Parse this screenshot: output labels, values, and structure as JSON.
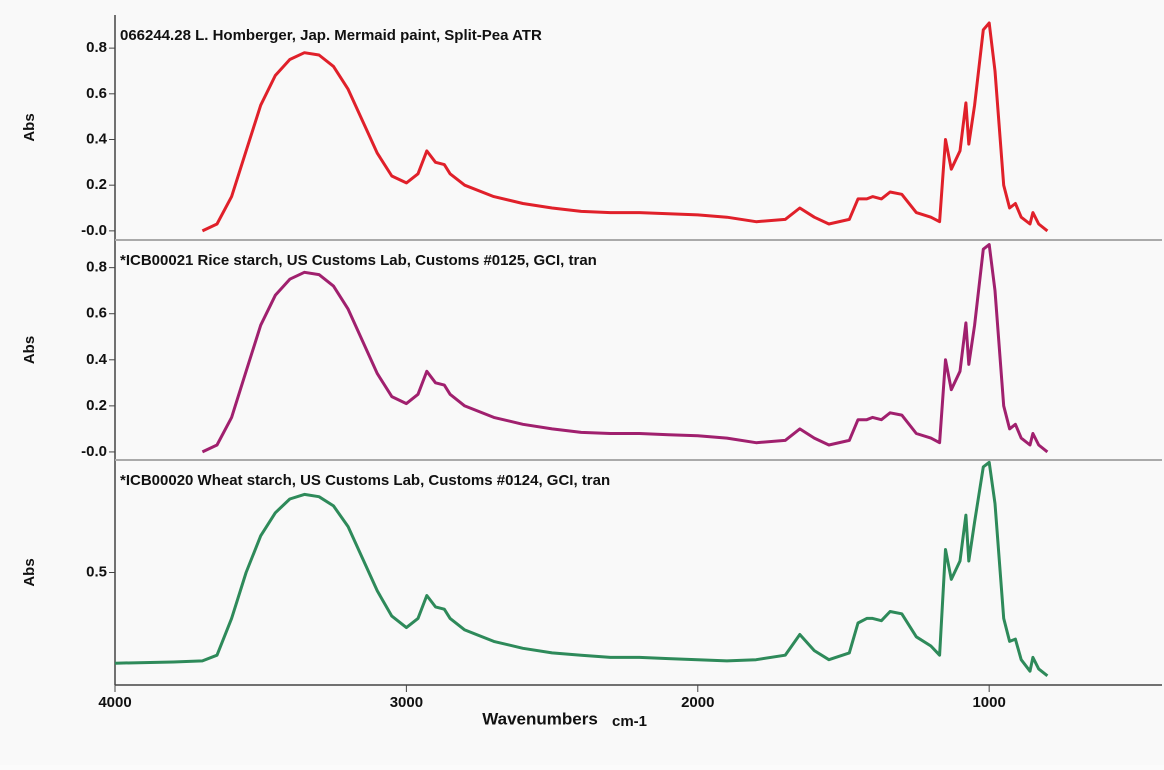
{
  "chart_data": [
    {
      "type": "line",
      "title": "066244.28 L. Homberger, Jap. Mermaid paint, Split-Pea ATR",
      "ylabel": "Abs",
      "color": "#e0202a",
      "xlim": [
        4000,
        400
      ],
      "ylim": [
        -0.04,
        0.945
      ],
      "yticks": [
        {
          "value": 0,
          "label": "-0.0"
        },
        0.2,
        0.4,
        0.6,
        0.8
      ],
      "x": [
        3700,
        3650,
        3600,
        3550,
        3500,
        3450,
        3400,
        3350,
        3300,
        3250,
        3200,
        3150,
        3100,
        3050,
        3000,
        2960,
        2930,
        2900,
        2870,
        2850,
        2800,
        2700,
        2600,
        2500,
        2400,
        2300,
        2200,
        2100,
        2000,
        1900,
        1800,
        1700,
        1650,
        1600,
        1550,
        1480,
        1450,
        1420,
        1400,
        1370,
        1340,
        1300,
        1250,
        1200,
        1170,
        1150,
        1130,
        1100,
        1080,
        1070,
        1050,
        1020,
        1000,
        980,
        950,
        930,
        910,
        890,
        860,
        850,
        830,
        800
      ],
      "values": [
        0.0,
        0.03,
        0.15,
        0.35,
        0.55,
        0.68,
        0.75,
        0.78,
        0.77,
        0.72,
        0.62,
        0.48,
        0.34,
        0.24,
        0.21,
        0.25,
        0.35,
        0.3,
        0.29,
        0.25,
        0.2,
        0.15,
        0.12,
        0.1,
        0.085,
        0.08,
        0.08,
        0.075,
        0.07,
        0.06,
        0.04,
        0.05,
        0.1,
        0.06,
        0.03,
        0.05,
        0.14,
        0.14,
        0.15,
        0.14,
        0.17,
        0.16,
        0.08,
        0.06,
        0.04,
        0.4,
        0.27,
        0.35,
        0.56,
        0.38,
        0.55,
        0.88,
        0.91,
        0.7,
        0.2,
        0.1,
        0.12,
        0.06,
        0.03,
        0.08,
        0.03,
        0.0
      ]
    },
    {
      "type": "line",
      "title": "*ICB00021 Rice starch, US Customs Lab, Customs #0125, GCI, tran",
      "ylabel": "Abs",
      "color": "#a0206e",
      "xlim": [
        4000,
        400
      ],
      "ylim": [
        -0.035,
        0.92
      ],
      "yticks": [
        {
          "value": 0,
          "label": "-0.0"
        },
        0.2,
        0.4,
        0.6,
        0.8
      ],
      "x": [
        3700,
        3650,
        3600,
        3550,
        3500,
        3450,
        3400,
        3350,
        3300,
        3250,
        3200,
        3150,
        3100,
        3050,
        3000,
        2960,
        2930,
        2900,
        2870,
        2850,
        2800,
        2700,
        2600,
        2500,
        2400,
        2300,
        2200,
        2100,
        2000,
        1900,
        1800,
        1700,
        1650,
        1600,
        1550,
        1480,
        1450,
        1420,
        1400,
        1370,
        1340,
        1300,
        1250,
        1200,
        1170,
        1150,
        1130,
        1100,
        1080,
        1070,
        1050,
        1020,
        1000,
        980,
        950,
        930,
        910,
        890,
        860,
        850,
        830,
        800
      ],
      "values": [
        0.0,
        0.03,
        0.15,
        0.35,
        0.55,
        0.68,
        0.75,
        0.78,
        0.77,
        0.72,
        0.62,
        0.48,
        0.34,
        0.24,
        0.21,
        0.25,
        0.35,
        0.3,
        0.29,
        0.25,
        0.2,
        0.15,
        0.12,
        0.1,
        0.085,
        0.08,
        0.08,
        0.075,
        0.07,
        0.06,
        0.04,
        0.05,
        0.1,
        0.06,
        0.03,
        0.05,
        0.14,
        0.14,
        0.15,
        0.14,
        0.17,
        0.16,
        0.08,
        0.06,
        0.04,
        0.4,
        0.27,
        0.35,
        0.56,
        0.38,
        0.55,
        0.88,
        0.9,
        0.7,
        0.2,
        0.1,
        0.12,
        0.06,
        0.03,
        0.08,
        0.03,
        0.0
      ]
    },
    {
      "type": "line",
      "title": "*ICB00020 Wheat starch, US Customs Lab, Customs #0124, GCI, tran",
      "ylabel": "Abs",
      "color": "#2e8a5a",
      "xlim": [
        4000,
        400
      ],
      "ylim": [
        0.01,
        0.99
      ],
      "yticks": [
        0.5
      ],
      "xticks": [
        4000,
        3000,
        2000,
        1000
      ],
      "xlabel": "Wavenumbers",
      "xunit": "cm-1",
      "x": [
        4000,
        3800,
        3700,
        3650,
        3600,
        3550,
        3500,
        3450,
        3400,
        3350,
        3300,
        3250,
        3200,
        3150,
        3100,
        3050,
        3000,
        2960,
        2930,
        2900,
        2870,
        2850,
        2800,
        2700,
        2600,
        2500,
        2400,
        2300,
        2200,
        2100,
        2000,
        1900,
        1800,
        1700,
        1650,
        1600,
        1550,
        1480,
        1450,
        1420,
        1400,
        1370,
        1340,
        1300,
        1250,
        1200,
        1170,
        1150,
        1130,
        1100,
        1080,
        1070,
        1050,
        1020,
        1000,
        980,
        950,
        930,
        910,
        890,
        860,
        850,
        830,
        800
      ],
      "values": [
        0.105,
        0.11,
        0.115,
        0.14,
        0.3,
        0.5,
        0.66,
        0.76,
        0.82,
        0.84,
        0.83,
        0.79,
        0.7,
        0.56,
        0.42,
        0.31,
        0.26,
        0.3,
        0.4,
        0.35,
        0.34,
        0.3,
        0.25,
        0.2,
        0.17,
        0.15,
        0.14,
        0.13,
        0.13,
        0.125,
        0.12,
        0.115,
        0.12,
        0.14,
        0.23,
        0.16,
        0.12,
        0.15,
        0.28,
        0.3,
        0.3,
        0.29,
        0.33,
        0.32,
        0.22,
        0.18,
        0.14,
        0.6,
        0.47,
        0.55,
        0.75,
        0.55,
        0.72,
        0.96,
        0.98,
        0.8,
        0.3,
        0.2,
        0.21,
        0.12,
        0.07,
        0.13,
        0.08,
        0.05
      ]
    }
  ]
}
